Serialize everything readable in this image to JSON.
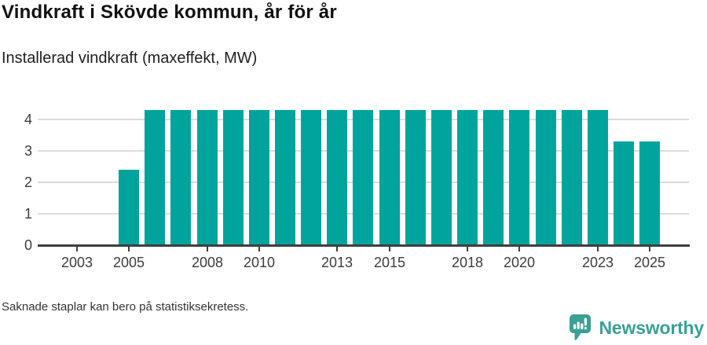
{
  "header": {
    "title": "Vindkraft i Skövde kommun, år för år",
    "subtitle": "Installerad vindkraft (maxeffekt, MW)"
  },
  "chart_data": {
    "type": "bar",
    "title": "Vindkraft i Skövde kommun, år för år",
    "subtitle": "Installerad vindkraft (maxeffekt, MW)",
    "ylabel": "",
    "xlabel": "",
    "unit": "MW",
    "x": [
      2005,
      2006,
      2007,
      2008,
      2009,
      2010,
      2011,
      2012,
      2013,
      2014,
      2015,
      2016,
      2017,
      2018,
      2019,
      2020,
      2021,
      2022,
      2023,
      2024,
      2025
    ],
    "values": [
      2.4,
      4.3,
      4.3,
      4.3,
      4.3,
      4.3,
      4.3,
      4.3,
      4.3,
      4.3,
      4.3,
      4.3,
      4.3,
      4.3,
      4.3,
      4.3,
      4.3,
      4.3,
      4.3,
      3.3,
      3.3
    ],
    "x_tick_labels": [
      "2003",
      "2005",
      "2008",
      "2010",
      "2013",
      "2015",
      "2018",
      "2020",
      "2023",
      "2025"
    ],
    "y_ticks": [
      0,
      1,
      2,
      3,
      4
    ],
    "ylim": [
      0,
      4.5
    ],
    "x_domain": [
      2001.5,
      2026.5
    ],
    "grid": "horizontal",
    "legend": "none",
    "bar_color": "#00a49c"
  },
  "footer": {
    "note": "Saknade staplar kan bero på statistiksekretess.",
    "brand": "Newsworthy"
  },
  "colors": {
    "bar_teal": "#00a49c",
    "brand_teal": "#3ba096",
    "axis_line": "#3f3f3f",
    "gridline": "#dbdbdb",
    "title_text": "#111111",
    "axis_text": "#3c3c3c"
  }
}
